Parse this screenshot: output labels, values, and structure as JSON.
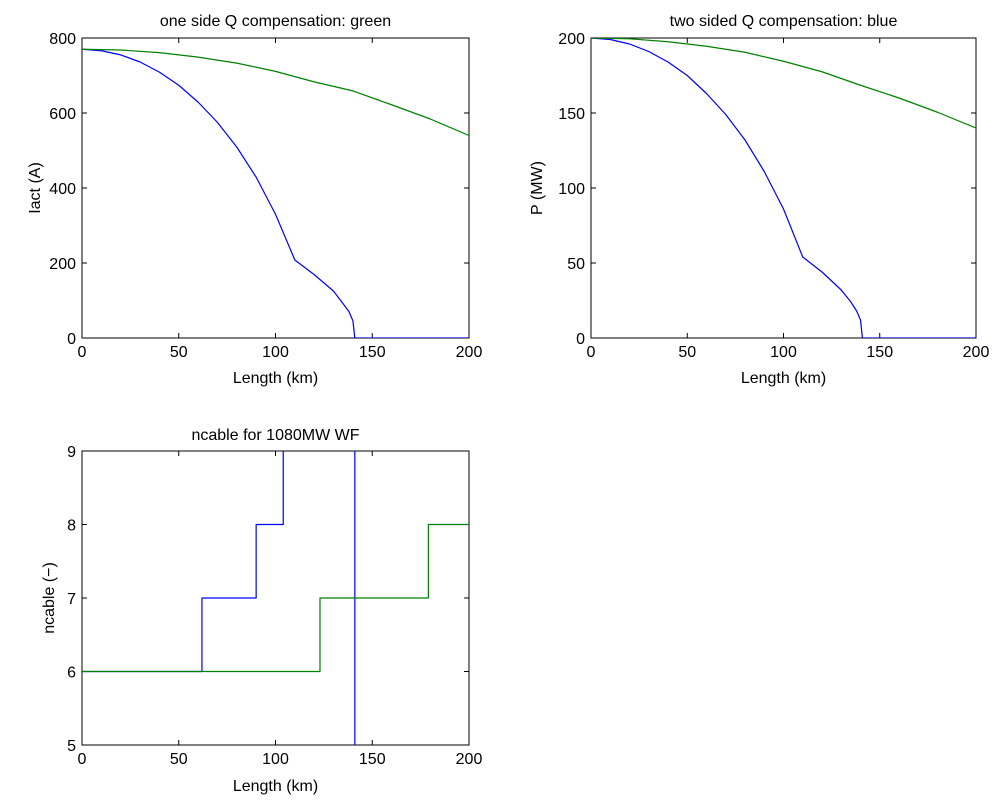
{
  "chart_data": [
    {
      "type": "line",
      "title": "one side Q compensation: green",
      "xlabel": "Length (km)",
      "ylabel": "Iact (A)",
      "xlim": [
        0,
        200
      ],
      "ylim": [
        0,
        800
      ],
      "xticks": [
        0,
        50,
        100,
        150,
        200
      ],
      "yticks": [
        0,
        200,
        400,
        600,
        800
      ],
      "grid": false,
      "series": [
        {
          "color": "#0000ff",
          "x": [
            0,
            10,
            20,
            30,
            40,
            50,
            60,
            70,
            80,
            90,
            100,
            110,
            120,
            130,
            135,
            138,
            140,
            141,
            200
          ],
          "y": [
            770,
            766,
            755,
            736,
            709,
            674,
            629,
            575,
            509,
            429,
            330,
            208,
            169,
            125,
            91,
            70,
            46,
            0,
            0
          ]
        },
        {
          "color": "#008000",
          "x": [
            0,
            20,
            40,
            60,
            80,
            100,
            120,
            140,
            160,
            180,
            200
          ],
          "y": [
            770,
            768,
            761,
            749,
            733,
            711,
            683,
            659,
            622,
            584,
            540
          ]
        }
      ]
    },
    {
      "type": "line",
      "title": "two sided Q compensation: blue",
      "xlabel": "Length (km)",
      "ylabel": "P (MW)",
      "xlim": [
        0,
        200
      ],
      "ylim": [
        0,
        200
      ],
      "xticks": [
        0,
        50,
        100,
        150,
        200
      ],
      "yticks": [
        0,
        50,
        100,
        150,
        200
      ],
      "grid": false,
      "series": [
        {
          "color": "#0000ff",
          "x": [
            0,
            10,
            20,
            30,
            40,
            50,
            60,
            70,
            80,
            90,
            100,
            110,
            120,
            130,
            135,
            138,
            140,
            141,
            200
          ],
          "y": [
            200,
            199,
            196,
            191,
            184,
            175,
            163,
            149,
            132,
            111,
            86,
            54,
            44,
            32,
            24,
            18,
            12,
            0,
            0
          ]
        },
        {
          "color": "#008000",
          "x": [
            0,
            20,
            40,
            60,
            80,
            100,
            120,
            140,
            160,
            180,
            200
          ],
          "y": [
            200,
            199.5,
            197.5,
            194.5,
            190.5,
            184.5,
            177.5,
            168.5,
            160,
            150.5,
            140
          ]
        }
      ]
    },
    {
      "type": "line",
      "title": "ncable for 1080MW WF",
      "xlabel": "Length (km)",
      "ylabel": "ncable (−)",
      "xlim": [
        0,
        200
      ],
      "ylim": [
        5,
        9
      ],
      "xticks": [
        0,
        50,
        100,
        150,
        200
      ],
      "yticks": [
        5,
        6,
        7,
        8,
        9
      ],
      "grid": false,
      "series": [
        {
          "color": "#0000ff",
          "x": [
            0,
            62,
            62,
            90,
            90,
            104,
            104,
            104
          ],
          "y": [
            6,
            6,
            7,
            7,
            8,
            8,
            9,
            9.2
          ]
        },
        {
          "color": "#0000ff",
          "x": [
            141,
            141
          ],
          "y": [
            5,
            9
          ]
        },
        {
          "color": "#008000",
          "x": [
            0,
            123,
            123,
            179,
            179,
            200
          ],
          "y": [
            6,
            6,
            7,
            7,
            8,
            8
          ]
        }
      ]
    }
  ]
}
